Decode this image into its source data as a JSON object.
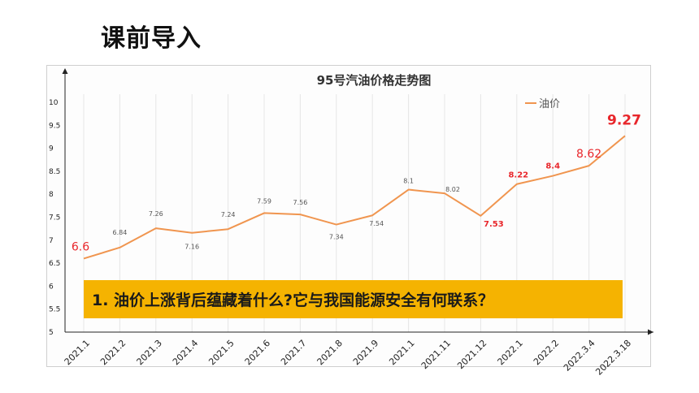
{
  "heading": "课前导入",
  "callout": "1. 油价上涨背后蕴藏着什么?它与我国能源安全有何联系？",
  "chart_data": {
    "type": "line",
    "title": "95号汽油价格走势图",
    "legend": {
      "label": "—油价",
      "placement": "top-right"
    },
    "categories": [
      "2021.1",
      "2021.2",
      "2021.3",
      "2021.4",
      "2021.5",
      "2021.6",
      "2021.7",
      "2021.8",
      "2021.9",
      "2021.1",
      "2021.11",
      "2021.12",
      "2022.1",
      "2022.2",
      "2022.3.4",
      "2022.3.18"
    ],
    "series": [
      {
        "name": "油价",
        "values": [
          6.6,
          6.84,
          7.26,
          7.16,
          7.24,
          7.59,
          7.56,
          7.34,
          7.54,
          8.1,
          8.02,
          7.53,
          8.22,
          8.4,
          8.62,
          9.27
        ],
        "labels": [
          "6.6",
          "6.84",
          "7.26",
          "7.16",
          "7.24",
          "7.59",
          "7.56",
          "7.34",
          "7.54",
          "8.1",
          "8.02",
          "7.53",
          "8.22",
          "8.4",
          "8.62",
          "9.27"
        ],
        "color": "#f0954f"
      }
    ],
    "yticks": [
      "5",
      "5.5",
      "6",
      "6.5",
      "7",
      "7.5",
      "8",
      "8.5",
      "9",
      "9.5",
      "10"
    ],
    "ylim": [
      5,
      10
    ],
    "grid": "vertical",
    "colors": {
      "line": "#f0954f",
      "highlight": "#e8262b",
      "grid": "#e6e6e6",
      "axis": "#222222",
      "label": "#555555"
    }
  }
}
